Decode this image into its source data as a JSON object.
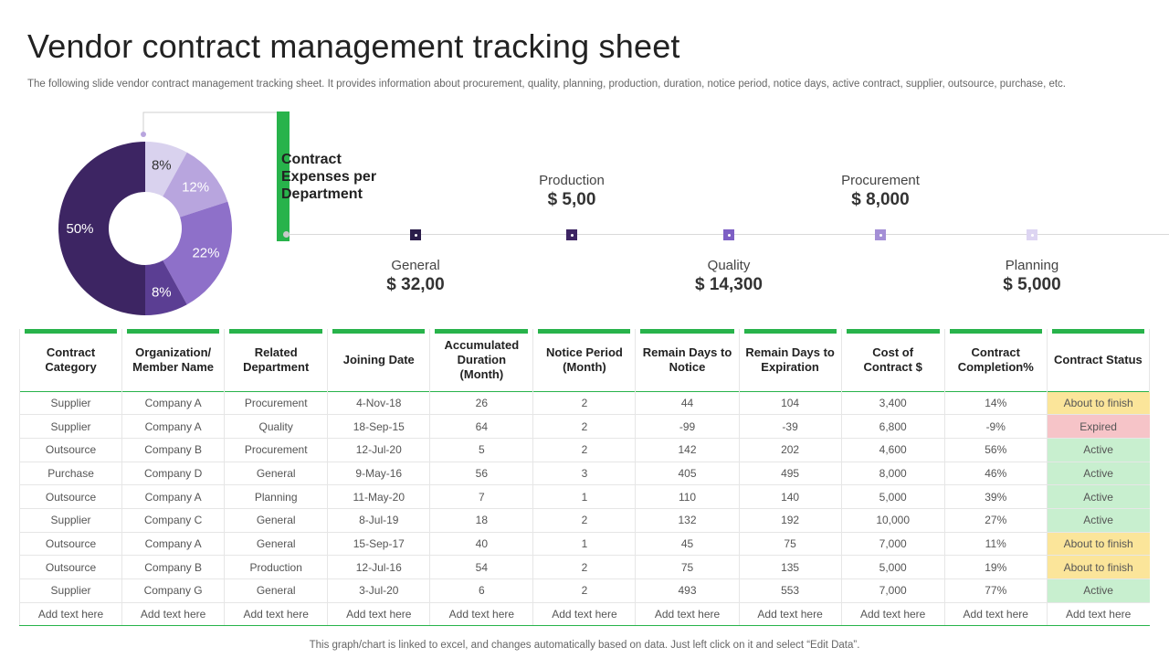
{
  "header": {
    "title": "Vendor contract management tracking sheet",
    "subtitle": "The following slide vendor contract management tracking sheet. It provides information about procurement, quality, planning, production, duration, notice period, notice days, active  contract, supplier, outsource, purchase, etc."
  },
  "section_title": "Contract Expenses per Department",
  "chart_data": [
    {
      "type": "pie",
      "variant": "donut",
      "categories": [
        "",
        "",
        "",
        "",
        ""
      ],
      "values": [
        8,
        12,
        22,
        8,
        50
      ],
      "labels": [
        "8%",
        "12%",
        "22%",
        "8%",
        "50%"
      ],
      "colors": [
        "#d9d2ee",
        "#b8a5de",
        "#8e70c9",
        "#5b3e93",
        "#3d2563"
      ]
    }
  ],
  "departments": [
    {
      "name": "General",
      "value": "$ 32,00",
      "color": "#2b1d4a",
      "position": "below"
    },
    {
      "name": "Production",
      "value": "$ 5,00",
      "color": "#3d2563",
      "position": "above"
    },
    {
      "name": "Quality",
      "value": "$ 14,300",
      "color": "#7d5fc4",
      "position": "below"
    },
    {
      "name": "Procurement",
      "value": "$ 8,000",
      "color": "#a48fd6",
      "position": "above"
    },
    {
      "name": "Planning",
      "value": "$ 5,000",
      "color": "#ddd5f2",
      "position": "below"
    }
  ],
  "table": {
    "columns": [
      "Contract Category",
      "Organization/ Member Name",
      "Related Department",
      "Joining Date",
      "Accumulated Duration (Month)",
      "Notice Period (Month)",
      "Remain Days to Notice",
      "Remain Days to Expiration",
      "Cost of Contract $",
      "Contract Completion%",
      "Contract Status"
    ],
    "rows": [
      {
        "cells": [
          "Supplier",
          "Company A",
          "Procurement",
          "4-Nov-18",
          "26",
          "2",
          "44",
          "104",
          "3,400",
          "14%",
          "About to finish"
        ],
        "status": "finish"
      },
      {
        "cells": [
          "Supplier",
          "Company A",
          "Quality",
          "18-Sep-15",
          "64",
          "2",
          "-99",
          "-39",
          "6,800",
          "-9%",
          "Expired"
        ],
        "status": "expired"
      },
      {
        "cells": [
          "Outsource",
          "Company B",
          "Procurement",
          "12-Jul-20",
          "5",
          "2",
          "142",
          "202",
          "4,600",
          "56%",
          "Active"
        ],
        "status": "active"
      },
      {
        "cells": [
          "Purchase",
          "Company D",
          "General",
          "9-May-16",
          "56",
          "3",
          "405",
          "495",
          "8,000",
          "46%",
          "Active"
        ],
        "status": "active"
      },
      {
        "cells": [
          "Outsource",
          "Company A",
          "Planning",
          "11-May-20",
          "7",
          "1",
          "110",
          "140",
          "5,000",
          "39%",
          "Active"
        ],
        "status": "active"
      },
      {
        "cells": [
          "Supplier",
          "Company C",
          "General",
          "8-Jul-19",
          "18",
          "2",
          "132",
          "192",
          "10,000",
          "27%",
          "Active"
        ],
        "status": "active"
      },
      {
        "cells": [
          "Outsource",
          "Company A",
          "General",
          "15-Sep-17",
          "40",
          "1",
          "45",
          "75",
          "7,000",
          "11%",
          "About to finish"
        ],
        "status": "finish"
      },
      {
        "cells": [
          "Outsource",
          "Company B",
          "Production",
          "12-Jul-16",
          "54",
          "2",
          "75",
          "135",
          "5,000",
          "19%",
          "About to finish"
        ],
        "status": "finish"
      },
      {
        "cells": [
          "Supplier",
          "Company G",
          "General",
          "3-Jul-20",
          "6",
          "2",
          "493",
          "553",
          "7,000",
          "77%",
          "Active"
        ],
        "status": "active"
      },
      {
        "cells": [
          "Add text here",
          "Add text here",
          "Add text here",
          "Add text here",
          "Add text here",
          "Add text here",
          "Add text here",
          "Add text here",
          "Add text here",
          "Add text here",
          "Add text here"
        ],
        "status": ""
      }
    ]
  },
  "footer": "This graph/chart is linked to excel,  and changes automatically based on data. Just left click on it and select “Edit Data”."
}
